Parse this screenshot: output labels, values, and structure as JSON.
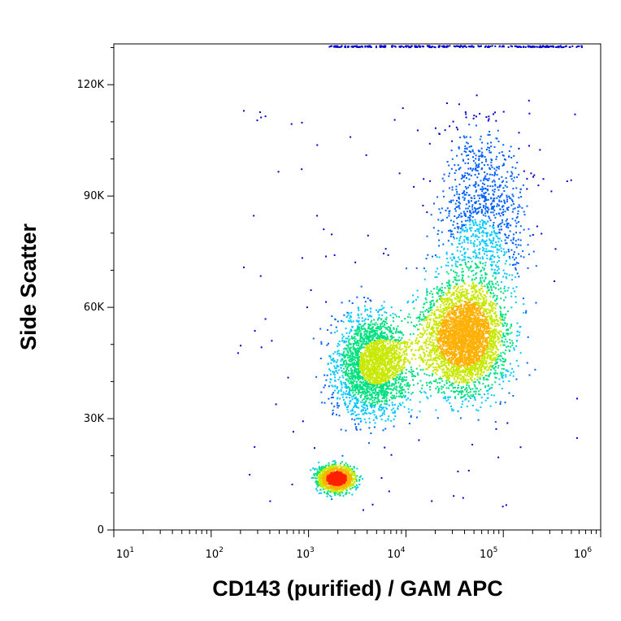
{
  "chart_data": {
    "type": "scatter",
    "style": "flow-cytometry density dot plot",
    "xlabel": "CD143 (purified) / GAM APC",
    "ylabel": "Side Scatter",
    "x_scale": "log",
    "xlim": [
      10,
      1000000
    ],
    "ylim": [
      0,
      131000
    ],
    "x_ticks": [
      {
        "base": "10",
        "exp": "1",
        "value": 10
      },
      {
        "base": "10",
        "exp": "2",
        "value": 100
      },
      {
        "base": "10",
        "exp": "3",
        "value": 1000
      },
      {
        "base": "10",
        "exp": "4",
        "value": 10000
      },
      {
        "base": "10",
        "exp": "5",
        "value": 100000
      },
      {
        "base": "10",
        "exp": "6",
        "value": 1000000
      }
    ],
    "y_ticks": [
      {
        "label": "0",
        "value": 0
      },
      {
        "label": "30K",
        "value": 30000
      },
      {
        "label": "60K",
        "value": 60000
      },
      {
        "label": "90K",
        "value": 90000
      },
      {
        "label": "120K",
        "value": 120000
      }
    ],
    "grid": false,
    "colormap": [
      "#0000d0",
      "#0060ff",
      "#00c8ff",
      "#00e080",
      "#c8e800",
      "#ffb000",
      "#ff2000"
    ],
    "populations": [
      {
        "name": "",
        "center_x": 1900,
        "center_y": 14000,
        "spread_log_x": 0.17,
        "spread_y": 3200,
        "relative_density": 1.0
      },
      {
        "name": "",
        "center_x": 4500,
        "center_y": 45000,
        "spread_log_x": 0.35,
        "spread_y": 12000,
        "relative_density": 0.55
      },
      {
        "name": "",
        "center_x": 40000,
        "center_y": 52000,
        "spread_log_x": 0.38,
        "spread_y": 13000,
        "relative_density": 0.75
      },
      {
        "name": "",
        "center_x": 60000,
        "center_y": 85000,
        "spread_log_x": 0.4,
        "spread_y": 22000,
        "relative_density": 0.2
      }
    ]
  }
}
